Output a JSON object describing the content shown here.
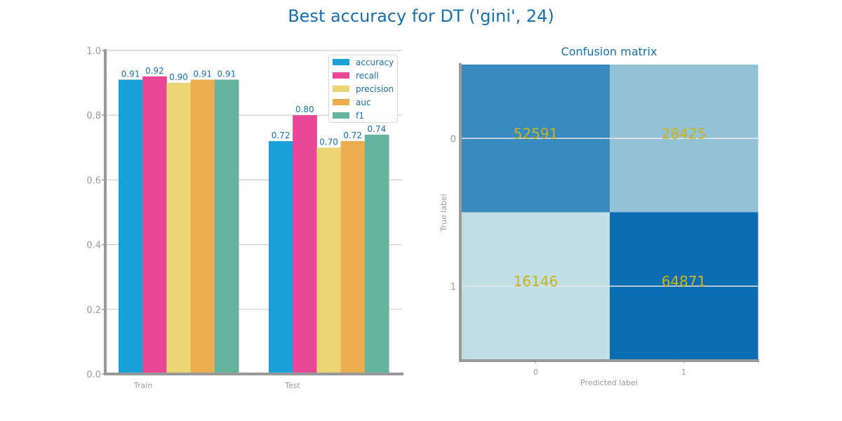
{
  "figure": {
    "title": "Best accuracy for DT ('gini', 24)"
  },
  "colors": {
    "title": "#1a6fae",
    "axis": "#999999",
    "grid": "#cccccc",
    "tick_text": "#999999",
    "label_text": "#1a6fae",
    "cm_text": "#c8b41a"
  },
  "chart_data": [
    {
      "type": "bar",
      "title": "",
      "categories": [
        "Train",
        "Test"
      ],
      "series": [
        {
          "name": "accuracy",
          "color": "#1aa0d8",
          "values": [
            0.91,
            0.72
          ]
        },
        {
          "name": "recall",
          "color": "#ea4698",
          "values": [
            0.92,
            0.8
          ]
        },
        {
          "name": "precision",
          "color": "#ecd574",
          "values": [
            0.9,
            0.7
          ]
        },
        {
          "name": "auc",
          "color": "#eaae4e",
          "values": [
            0.91,
            0.72
          ]
        },
        {
          "name": "f1",
          "color": "#63b39e",
          "values": [
            0.91,
            0.74
          ]
        }
      ],
      "data_labels": [
        [
          "0.91",
          "0.92",
          "0.90",
          "0.91",
          "0.91"
        ],
        [
          "0.72",
          "0.80",
          "0.70",
          "0.72",
          "0.74"
        ]
      ],
      "xlabel": "",
      "ylabel": "",
      "ylim": [
        0,
        1.0
      ],
      "yticks": [
        "0.0",
        "0.2",
        "0.4",
        "0.6",
        "0.8",
        "1.0"
      ],
      "grid": true,
      "legend": "top-right"
    },
    {
      "type": "heatmap",
      "title": "Confusion matrix",
      "xlabel": "Predicted label",
      "ylabel": "True label",
      "xticks": [
        "0",
        "1"
      ],
      "yticks": [
        "0",
        "1"
      ],
      "matrix": [
        [
          52591,
          28425
        ],
        [
          16146,
          64871
        ]
      ],
      "matrix_labels": [
        [
          "52591",
          "28425"
        ],
        [
          "16146",
          "64871"
        ]
      ]
    }
  ]
}
